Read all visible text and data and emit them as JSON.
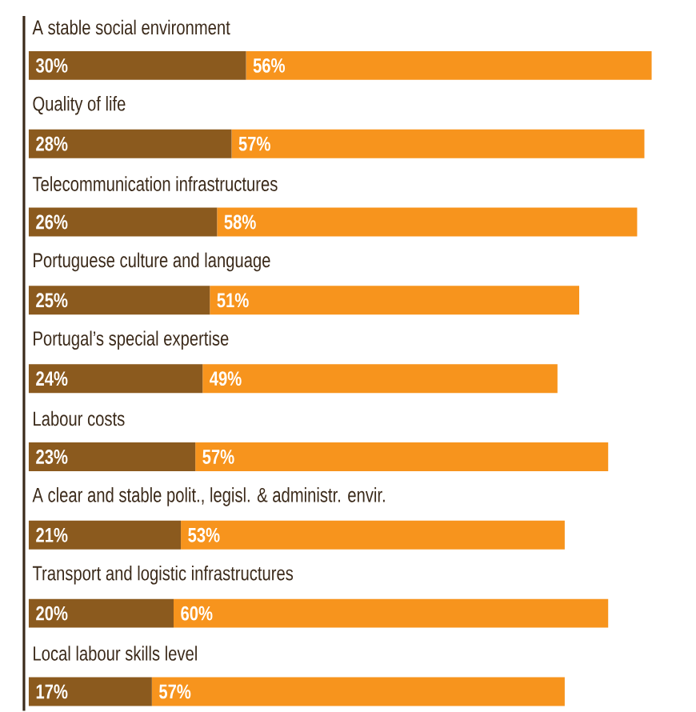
{
  "chart_data": {
    "type": "bar",
    "orientation": "horizontal",
    "stacked": true,
    "categories": [
      "A stable social environment",
      "Quality of life",
      "Telecommunication infrastructures",
      "Portuguese culture and language",
      "Portugal’s special expertise",
      "Labour costs",
      "A clear and stable polit., legisl. & administr. envir.",
      "Transport and logistic infrastructures",
      "Local labour skills level"
    ],
    "series": [
      {
        "color": "#8b5a1e",
        "values": [
          30,
          28,
          26,
          25,
          24,
          23,
          21,
          20,
          17
        ],
        "value_labels": [
          "30%",
          "28%",
          "26%",
          "25%",
          "24%",
          "23%",
          "21%",
          "20%",
          "17%"
        ]
      },
      {
        "color": "#f7941d",
        "values": [
          56,
          57,
          58,
          51,
          49,
          57,
          53,
          60,
          57
        ],
        "value_labels": [
          "56%",
          "57%",
          "58%",
          "51%",
          "49%",
          "57%",
          "53%",
          "60%",
          "57%"
        ]
      }
    ]
  }
}
